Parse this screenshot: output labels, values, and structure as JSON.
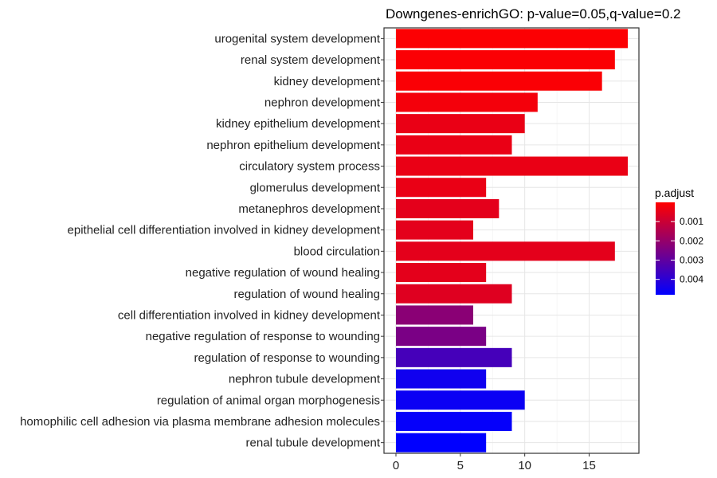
{
  "chart_data": {
    "type": "bar",
    "orientation": "horizontal",
    "title": "Downgenes-enrichGO: p-value=0.05,q-value=0.2",
    "xlabel": "",
    "ylabel": "",
    "xlim": [
      0,
      18.9
    ],
    "x_ticks": [
      0,
      5,
      10,
      15
    ],
    "grid": true,
    "categories": [
      "urogenital system development",
      "renal system development",
      "kidney development",
      "nephron development",
      "kidney epithelium development",
      "nephron epithelium development",
      "circulatory system process",
      "glomerulus development",
      "metanephros development",
      "epithelial cell differentiation involved in kidney development",
      "blood circulation",
      "negative regulation of wound healing",
      "regulation of wound healing",
      "cell differentiation involved in kidney development",
      "negative regulation of response to wounding",
      "regulation of response to wounding",
      "nephron tubule development",
      "regulation of animal organ morphogenesis",
      "homophilic cell adhesion via plasma membrane adhesion molecules",
      "renal tubule development"
    ],
    "values": [
      18,
      17,
      16,
      11,
      10,
      9,
      18,
      7,
      8,
      6,
      17,
      7,
      9,
      6,
      7,
      9,
      7,
      10,
      9,
      7
    ],
    "color_values": [
      5e-05,
      8e-05,
      0.0001,
      0.0002,
      0.0004,
      0.0004,
      0.0004,
      0.0004,
      0.0005,
      0.0005,
      0.0005,
      0.0005,
      0.0006,
      0.0022,
      0.0025,
      0.0035,
      0.0045,
      0.0046,
      0.0047,
      0.0048
    ],
    "color_scale": {
      "name": "p.adjust",
      "min": 0.0,
      "max": 0.0048,
      "low_color": "#ff0000",
      "high_color": "#0000ff",
      "ticks": [
        "0.001",
        "0.002",
        "0.003",
        "0.004"
      ],
      "tick_values": [
        0.001,
        0.002,
        0.003,
        0.004
      ]
    },
    "legend_position": "right"
  }
}
